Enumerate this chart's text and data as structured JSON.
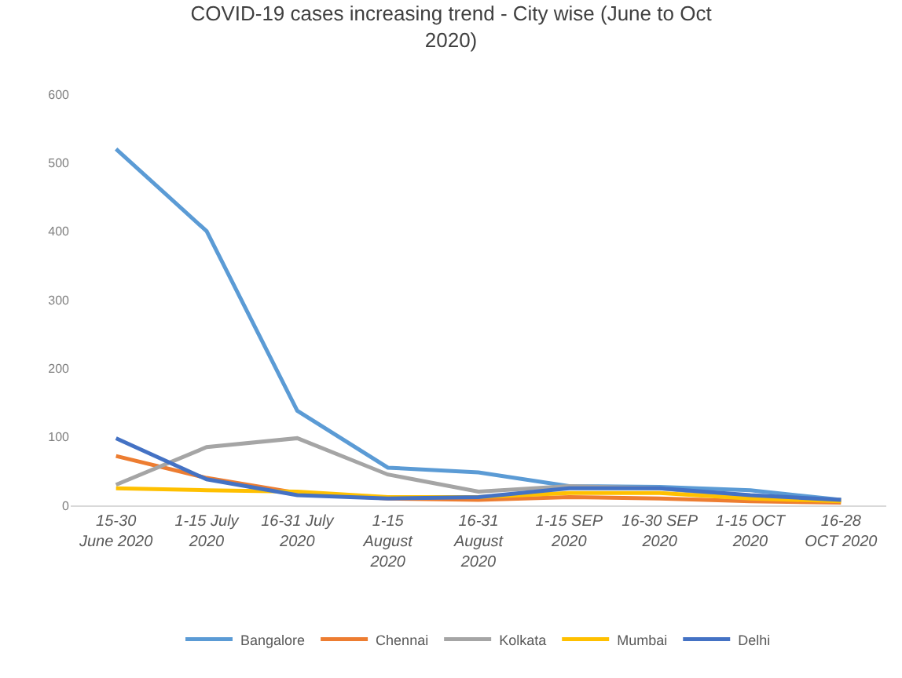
{
  "chart_data": {
    "type": "line",
    "title": "COVID-19 cases increasing trend - City wise (June to Oct\n2020)",
    "categories": [
      "15-30\nJune 2020",
      "1-15 July\n2020",
      "16-31 July\n2020",
      "1-15\nAugust\n2020",
      "16-31\nAugust\n2020",
      "1-15 SEP\n2020",
      "16-30 SEP\n2020",
      "1-15 OCT\n2020",
      "16-28\nOCT 2020"
    ],
    "series": [
      {
        "name": "Bangalore",
        "color": "#5b9bd5",
        "values": [
          520,
          400,
          138,
          55,
          48,
          28,
          27,
          22,
          8
        ]
      },
      {
        "name": "Chennai",
        "color": "#ed7d31",
        "values": [
          72,
          40,
          18,
          10,
          8,
          12,
          10,
          6,
          4
        ]
      },
      {
        "name": "Kolkata",
        "color": "#a5a5a5",
        "values": [
          30,
          85,
          98,
          45,
          20,
          28,
          25,
          12,
          8
        ]
      },
      {
        "name": "Mumbai",
        "color": "#ffc000",
        "values": [
          25,
          22,
          20,
          12,
          12,
          18,
          18,
          10,
          6
        ]
      },
      {
        "name": "Delhi",
        "color": "#4472c4",
        "values": [
          98,
          38,
          15,
          10,
          12,
          25,
          25,
          15,
          8
        ]
      }
    ],
    "ylim": [
      0,
      600
    ],
    "yticks": [
      0,
      100,
      200,
      300,
      400,
      500,
      600
    ],
    "grid": false,
    "legend": "bottom",
    "marker": "none",
    "line_style": "solid"
  }
}
